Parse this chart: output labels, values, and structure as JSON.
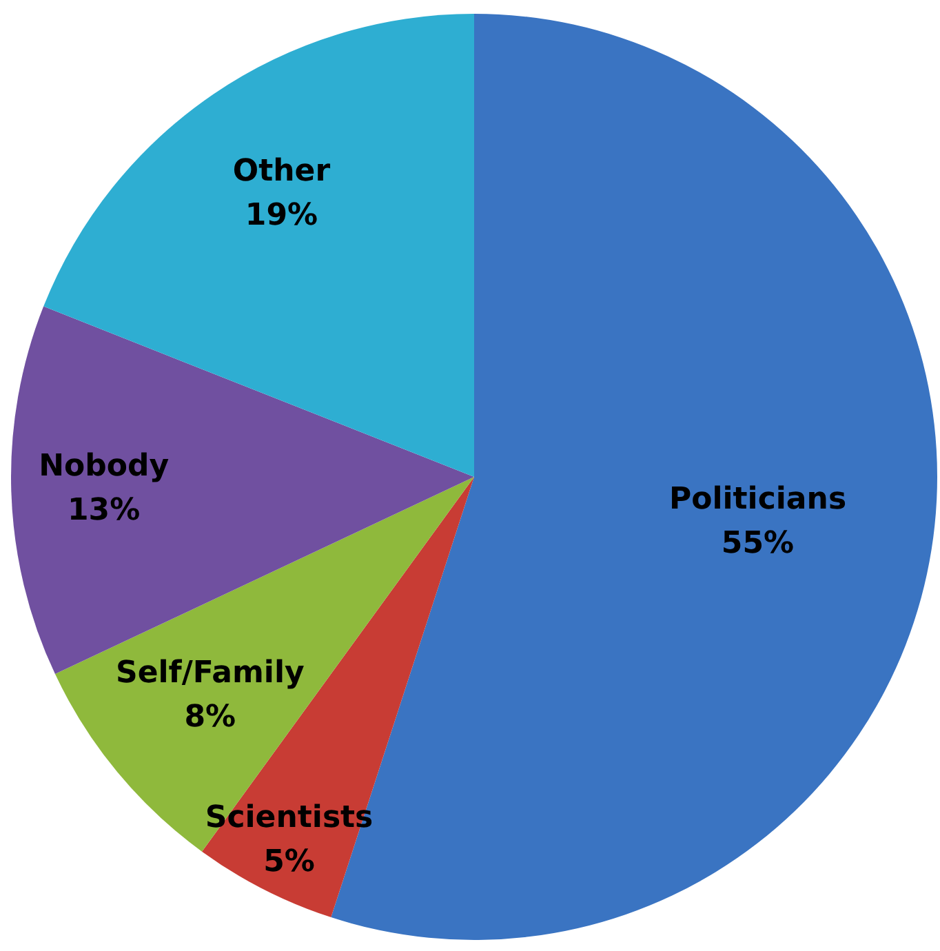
{
  "chart_data": {
    "type": "pie",
    "categories": [
      "Politicians",
      "Scientists",
      "Self/Family",
      "Nobody",
      "Other"
    ],
    "values": [
      55,
      5,
      8,
      13,
      19
    ],
    "value_labels": [
      "55%",
      "5%",
      "8%",
      "13%",
      "19%"
    ],
    "colors": [
      "#3a74c2",
      "#c83c34",
      "#8fb93c",
      "#7050a0",
      "#2eaed2"
    ]
  }
}
